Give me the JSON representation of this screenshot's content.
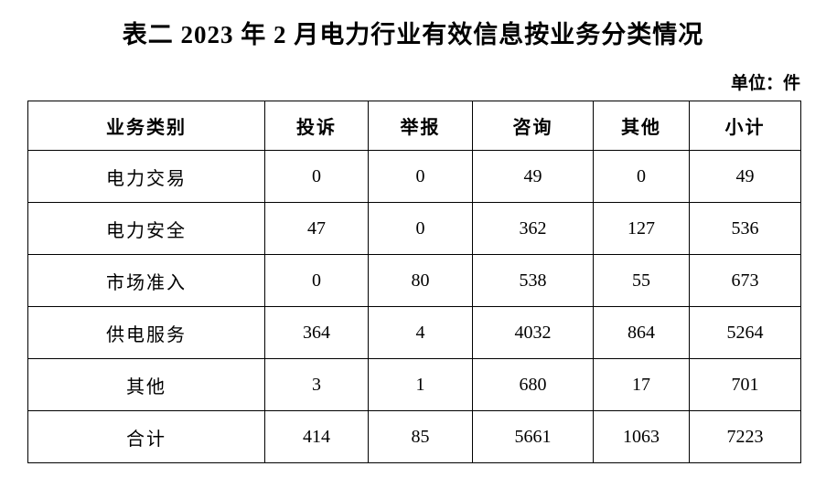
{
  "page": {
    "title": "表二 2023 年 2 月电力行业有效信息按业务分类情况",
    "unit_label": "单位：件"
  },
  "table": {
    "columns": [
      "业务类别",
      "投诉",
      "举报",
      "咨询",
      "其他",
      "小计"
    ],
    "rows": [
      {
        "category": "电力交易",
        "values": [
          "0",
          "0",
          "49",
          "0",
          "49"
        ]
      },
      {
        "category": "电力安全",
        "values": [
          "47",
          "0",
          "362",
          "127",
          "536"
        ]
      },
      {
        "category": "市场准入",
        "values": [
          "0",
          "80",
          "538",
          "55",
          "673"
        ]
      },
      {
        "category": "供电服务",
        "values": [
          "364",
          "4",
          "4032",
          "864",
          "5264"
        ]
      },
      {
        "category": "其他",
        "values": [
          "3",
          "1",
          "680",
          "17",
          "701"
        ]
      },
      {
        "category": "合计",
        "values": [
          "414",
          "85",
          "5661",
          "1063",
          "7223"
        ]
      }
    ]
  },
  "chart_data": {
    "type": "table",
    "title": "表二 2023 年 2 月电力行业有效信息按业务分类情况",
    "unit": "单位：件",
    "columns": [
      "业务类别",
      "投诉",
      "举报",
      "咨询",
      "其他",
      "小计"
    ],
    "rows": [
      [
        "电力交易",
        0,
        0,
        49,
        0,
        49
      ],
      [
        "电力安全",
        47,
        0,
        362,
        127,
        536
      ],
      [
        "市场准入",
        0,
        80,
        538,
        55,
        673
      ],
      [
        "供电服务",
        364,
        4,
        4032,
        864,
        5264
      ],
      [
        "其他",
        3,
        1,
        680,
        17,
        701
      ],
      [
        "合计",
        414,
        85,
        5661,
        1063,
        7223
      ]
    ]
  },
  "colors": {
    "text": "#000000",
    "border": "#000000",
    "background": "#ffffff"
  }
}
